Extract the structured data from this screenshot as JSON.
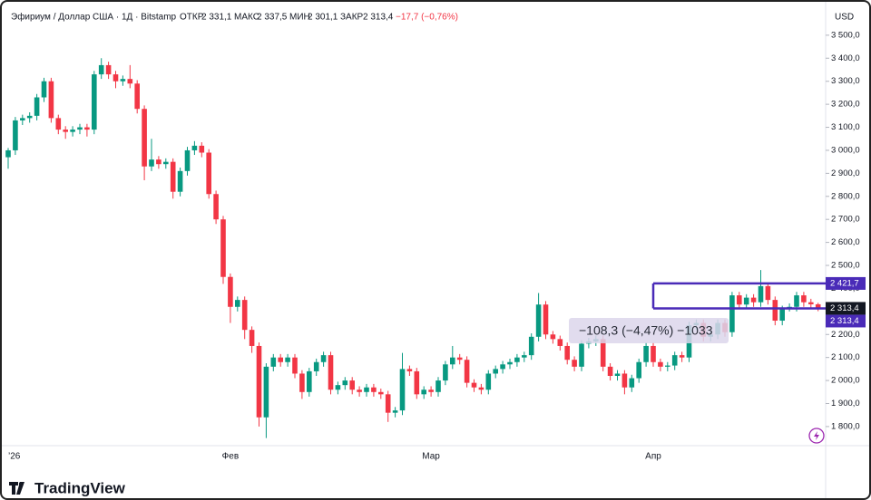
{
  "header": {
    "symbol": "Эфириум / Доллар США · 1Д · Bitstamp",
    "open_label": "ОТКР",
    "open": "2 331,1",
    "high_label": "МАКС",
    "high": "2 337,5",
    "low_label": "МИН",
    "low": "2 301,1",
    "close_label": "ЗАКР",
    "close": "2 313,4",
    "change": "−17,7 (−0,76%)"
  },
  "chart_data": {
    "type": "candlestick",
    "currency": "USD",
    "categories": [
      "’26",
      null,
      null,
      null,
      null,
      null,
      null,
      null,
      null,
      null,
      null,
      null,
      null,
      null,
      null,
      null,
      null,
      null,
      null,
      null,
      null,
      null,
      null,
      null,
      null,
      null,
      null,
      null,
      null,
      null,
      null,
      "Фев",
      null,
      null,
      null,
      null,
      null,
      null,
      null,
      null,
      null,
      null,
      null,
      null,
      null,
      null,
      null,
      null,
      null,
      null,
      null,
      null,
      null,
      null,
      null,
      null,
      null,
      null,
      null,
      "Мар",
      null,
      null,
      null,
      null,
      null,
      null,
      null,
      null,
      null,
      null,
      null,
      null,
      null,
      null,
      null,
      null,
      null,
      null,
      null,
      null,
      null,
      null,
      null,
      null,
      null,
      null,
      null,
      null,
      null,
      null,
      "Апр",
      null,
      null,
      null,
      null,
      null,
      null,
      null,
      null,
      null,
      null,
      null,
      null,
      null,
      null,
      null,
      null,
      null,
      null,
      null,
      null,
      null,
      null,
      null
    ],
    "open": [
      2970,
      3000,
      3130,
      3140,
      3150,
      3230,
      3300,
      3140,
      3090,
      3080,
      3090,
      3100,
      3090,
      3330,
      3370,
      3330,
      3300,
      3310,
      3290,
      3180,
      2930,
      2960,
      2940,
      2950,
      2820,
      2910,
      3000,
      3020,
      2990,
      2810,
      2700,
      2450,
      2320,
      2350,
      2220,
      2150,
      1840,
      2060,
      2100,
      2080,
      2100,
      2030,
      1950,
      2040,
      2080,
      2110,
      1960,
      1980,
      2000,
      1960,
      1950,
      1970,
      1950,
      1940,
      1860,
      1870,
      2050,
      2040,
      1940,
      1960,
      1950,
      2000,
      2070,
      2100,
      2090,
      1990,
      1970,
      1960,
      2030,
      2050,
      2070,
      2080,
      2100,
      2110,
      2190,
      2330,
      2200,
      2180,
      2150,
      2090,
      2060,
      2160,
      2170,
      2180,
      2060,
      2020,
      2030,
      1970,
      2010,
      2080,
      2150,
      2080,
      2060,
      2065,
      2110,
      2100,
      2240,
      2250,
      2190,
      2200,
      2250,
      2210,
      2370,
      2330,
      2360,
      2340,
      2410,
      2350,
      2260,
      2310,
      2320,
      2370,
      2340,
      2331.1
    ],
    "high": [
      3010,
      3145,
      3155,
      3165,
      3245,
      3315,
      3315,
      3155,
      3105,
      3105,
      3115,
      3115,
      3345,
      3400,
      3385,
      3345,
      3325,
      3370,
      3305,
      3195,
      3050,
      2975,
      2965,
      2965,
      2925,
      3015,
      3040,
      3035,
      3005,
      2825,
      2715,
      2465,
      2365,
      2365,
      2235,
      2165,
      2075,
      2115,
      2115,
      2115,
      2115,
      2045,
      2055,
      2095,
      2125,
      2125,
      1995,
      2015,
      2015,
      1975,
      1985,
      1985,
      1965,
      1955,
      1885,
      2120,
      2065,
      2055,
      1975,
      1975,
      2015,
      2085,
      2150,
      2115,
      2105,
      2005,
      1985,
      2045,
      2065,
      2085,
      2095,
      2115,
      2125,
      2205,
      2380,
      2345,
      2215,
      2195,
      2165,
      2105,
      2175,
      2185,
      2195,
      2195,
      2075,
      2045,
      2045,
      2025,
      2095,
      2165,
      2165,
      2095,
      2080,
      2125,
      2125,
      2255,
      2265,
      2265,
      2215,
      2265,
      2265,
      2385,
      2385,
      2375,
      2375,
      2480,
      2425,
      2365,
      2325,
      2335,
      2385,
      2385,
      2355,
      2337.5
    ],
    "low": [
      2920,
      2980,
      3110,
      3120,
      3130,
      3210,
      3120,
      3070,
      3050,
      3060,
      3070,
      3060,
      3070,
      3310,
      3310,
      3270,
      3280,
      3270,
      3160,
      2870,
      2910,
      2920,
      2920,
      2790,
      2800,
      2890,
      2980,
      2970,
      2790,
      2680,
      2420,
      2250,
      2300,
      2180,
      2120,
      1800,
      1750,
      2040,
      2060,
      2060,
      2010,
      1920,
      1930,
      2020,
      2060,
      1940,
      1940,
      1960,
      1940,
      1930,
      1930,
      1930,
      1920,
      1820,
      1840,
      1850,
      2020,
      1920,
      1920,
      1930,
      1930,
      1980,
      2050,
      2070,
      1970,
      1950,
      1940,
      1940,
      2010,
      2030,
      2050,
      2060,
      2080,
      2090,
      2170,
      2180,
      2160,
      2130,
      2070,
      2040,
      2040,
      2140,
      2150,
      2040,
      2000,
      2000,
      1940,
      1950,
      1990,
      2060,
      2060,
      2040,
      2040,
      2045,
      2080,
      2080,
      2220,
      2170,
      2170,
      2180,
      2190,
      2190,
      2310,
      2310,
      2320,
      2320,
      2330,
      2240,
      2240,
      2300,
      2300,
      2320,
      2310,
      2301.1
    ],
    "close": [
      3000,
      3130,
      3140,
      3150,
      3230,
      3300,
      3140,
      3090,
      3080,
      3090,
      3100,
      3090,
      3330,
      3370,
      3330,
      3300,
      3310,
      3290,
      3180,
      2930,
      2960,
      2940,
      2950,
      2820,
      2910,
      3000,
      3020,
      2990,
      2810,
      2700,
      2450,
      2320,
      2350,
      2220,
      2150,
      1840,
      2060,
      2100,
      2080,
      2100,
      2030,
      1950,
      2040,
      2080,
      2110,
      1960,
      1980,
      2000,
      1960,
      1950,
      1970,
      1950,
      1940,
      1860,
      1870,
      2050,
      2040,
      1940,
      1960,
      1950,
      2000,
      2070,
      2100,
      2090,
      1990,
      1970,
      1960,
      2030,
      2050,
      2070,
      2080,
      2100,
      2110,
      2190,
      2330,
      2200,
      2180,
      2150,
      2090,
      2060,
      2160,
      2170,
      2180,
      2060,
      2020,
      2030,
      1970,
      2010,
      2080,
      2150,
      2080,
      2060,
      2065,
      2110,
      2100,
      2240,
      2250,
      2190,
      2200,
      2250,
      2210,
      2370,
      2330,
      2360,
      2340,
      2410,
      2350,
      2260,
      2310,
      2320,
      2370,
      2340,
      2331.1,
      2313.4
    ],
    "up_color": "#089981",
    "down_color": "#f23645",
    "ylim": [
      1717,
      3535
    ],
    "yticks": [
      {
        "value": 1800,
        "label": "1 800,0"
      },
      {
        "value": 1900,
        "label": "1 900,0"
      },
      {
        "value": 2000,
        "label": "2 000,0"
      },
      {
        "value": 2100,
        "label": "2 100,0"
      },
      {
        "value": 2200,
        "label": "2 200,0"
      },
      {
        "value": 2300,
        "label": "2 300,0"
      },
      {
        "value": 2400,
        "label": "2 400,0"
      },
      {
        "value": 2500,
        "label": "2 500,0"
      },
      {
        "value": 2600,
        "label": "2 600,0"
      },
      {
        "value": 2700,
        "label": "2 700,0"
      },
      {
        "value": 2800,
        "label": "2 800,0"
      },
      {
        "value": 2900,
        "label": "2 900,0"
      },
      {
        "value": 3000,
        "label": "3 000,0"
      },
      {
        "value": 3100,
        "label": "3 100,0"
      },
      {
        "value": 3200,
        "label": "3 200,0"
      },
      {
        "value": 3300,
        "label": "3 300,0"
      },
      {
        "value": 3400,
        "label": "3 400,0"
      },
      {
        "value": 3500,
        "label": "3 500,0"
      }
    ],
    "rectangle": {
      "color": "#4a2bb8",
      "top": {
        "value": 2421.7,
        "label": "2 421,7"
      },
      "bottom": {
        "value": 2313.4,
        "label": "2 313,4"
      }
    },
    "last_price": {
      "value": 2313.4,
      "label": "2 313,4"
    },
    "measure": "−108,3 (−4,47%) −1033"
  },
  "brand": "TradingView"
}
